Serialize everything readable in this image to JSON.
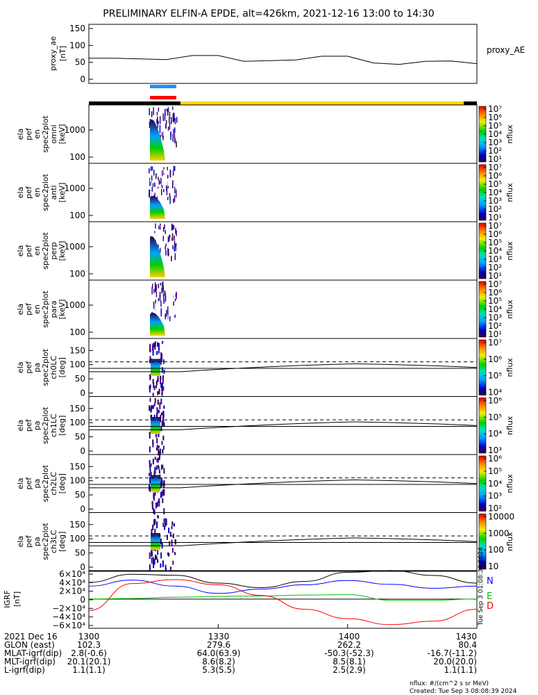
{
  "title": "PRELIMINARY ELFIN-A EPDE, alt=426km, 2021-12-16 13:00 to 14:30",
  "ae_panel": {
    "ylabel": [
      "proxy_ae",
      "[nT]"
    ],
    "legend": "proxy_AE",
    "yticks": [
      "150",
      "100",
      "50",
      "0"
    ],
    "ylim": [
      0,
      150
    ]
  },
  "spec_panels": [
    {
      "ylabel": [
        "ela",
        "pef",
        "en",
        "spec2plot",
        "omni",
        "[keV]"
      ],
      "yticks": [
        "1000",
        "100"
      ],
      "cbar_ticks": [
        "10⁷",
        "10⁶",
        "10⁵",
        "10⁴",
        "10³",
        "10²",
        "10¹"
      ],
      "cbar_label": "nflux"
    },
    {
      "ylabel": [
        "ela",
        "pef",
        "en",
        "spec2plot",
        "anti",
        "[keV]"
      ],
      "yticks": [
        "1000",
        "100"
      ],
      "cbar_ticks": [
        "10⁷",
        "10⁶",
        "10⁵",
        "10⁴",
        "10³",
        "10²",
        "10¹"
      ],
      "cbar_label": "nflux"
    },
    {
      "ylabel": [
        "ela",
        "pef",
        "en",
        "spec2plot",
        "perp",
        "[keV]"
      ],
      "yticks": [
        "1000",
        "100"
      ],
      "cbar_ticks": [
        "10⁷",
        "10⁶",
        "10⁵",
        "10⁴",
        "10³",
        "10²",
        "10¹"
      ],
      "cbar_label": "nflux"
    },
    {
      "ylabel": [
        "ela",
        "pef",
        "en",
        "spec2plot",
        "para",
        "[keV]"
      ],
      "yticks": [
        "1000",
        "100"
      ],
      "cbar_ticks": [
        "10⁷",
        "10⁶",
        "10⁵",
        "10⁴",
        "10³",
        "10²",
        "10¹"
      ],
      "cbar_label": "nflux"
    }
  ],
  "pa_panels": [
    {
      "ylabel": [
        "ela",
        "pef",
        "pa",
        "spec2plot",
        "ch0LC",
        "[deg]"
      ],
      "yticks": [
        "150",
        "100",
        "50",
        "0"
      ],
      "cbar_ticks": [
        "10⁷",
        "10⁶",
        "10⁵",
        "10⁴"
      ],
      "cbar_label": "nflux"
    },
    {
      "ylabel": [
        "ela",
        "pef",
        "pa",
        "spec2plot",
        "ch1LC",
        "[deg]"
      ],
      "yticks": [
        "150",
        "100",
        "50",
        "0"
      ],
      "cbar_ticks": [
        "10⁶",
        "10⁵",
        "10⁴",
        "10³"
      ],
      "cbar_label": "nflux"
    },
    {
      "ylabel": [
        "ela",
        "pef",
        "pa",
        "spec2plot",
        "ch2LC",
        "[deg]"
      ],
      "yticks": [
        "150",
        "100",
        "50",
        "0"
      ],
      "cbar_ticks": [
        "10⁶",
        "10⁵",
        "10⁴",
        "10³",
        "10²"
      ],
      "cbar_label": "nflux"
    },
    {
      "ylabel": [
        "ela",
        "pef",
        "pa",
        "spec2plot",
        "ch3LC",
        "[deg]"
      ],
      "yticks": [
        "150",
        "100",
        "50",
        "0"
      ],
      "cbar_ticks": [
        "10000",
        "1000",
        "100",
        "10"
      ],
      "cbar_label": "nflux"
    }
  ],
  "igrf_panel": {
    "ylabel": [
      "IGRF",
      "[nT]"
    ],
    "yticks": [
      "6×10⁴",
      "4×10⁴",
      "2×10⁴",
      "0",
      "−2×10⁴",
      "−4×10⁴",
      "−6×10⁴"
    ],
    "legend": [
      "N",
      "E",
      "D"
    ],
    "side_note": "Tue Sep 3 01:08:36 2024"
  },
  "colors": {
    "n_curve": "#0000ff",
    "e_curve": "#00c000",
    "d_curve": "#ff0000",
    "bar_blue": "#1e90ff",
    "bar_red": "#ff0000",
    "sunlit_bar": "#ffd700",
    "shadow_bar": "#000000"
  },
  "footer": {
    "rows": [
      [
        "2021 Dec 16",
        "1300",
        "1330",
        "1400",
        "1430"
      ],
      [
        "GLON (east)",
        "102.3",
        "279.6",
        "262.2",
        "80.4"
      ],
      [
        "MLAT-igrf(dip)",
        "2.8(-0.6)",
        "64.0(63.9)",
        "-50.3(-52.3)",
        "-16.7(-11.2)"
      ],
      [
        "MLT-igrf(dip)",
        "20.1(20.1)",
        "8.6(8.2)",
        "8.5(8.1)",
        "20.0(20.0)"
      ],
      [
        "L-igrf(dip)",
        "1.1(1.1)",
        "5.3(5.5)",
        "2.5(2.9)",
        "1.1(1.1)"
      ]
    ],
    "nflux_note": "nflux: #/(cm^2 s sr MeV)",
    "created": "Created: Tue Sep  3 08:08:39 2024"
  },
  "chart_data": {
    "type": "line",
    "x_range": [
      "13:00",
      "14:30"
    ],
    "proxy_ae": {
      "x_minutes": [
        0,
        6,
        12,
        18,
        24,
        30,
        36,
        42,
        48,
        54,
        60,
        66,
        72,
        78,
        84,
        90
      ],
      "values": [
        62,
        62,
        60,
        58,
        70,
        70,
        53,
        55,
        57,
        68,
        68,
        48,
        44,
        53,
        54,
        46
      ],
      "ylim": [
        0,
        150
      ]
    },
    "igrf": {
      "x_minutes": [
        0,
        10,
        20,
        30,
        40,
        50,
        60,
        70,
        80,
        90
      ],
      "N": [
        32000,
        46000,
        32000,
        15000,
        25000,
        35000,
        45000,
        36000,
        27000,
        32000
      ],
      "E": [
        2000,
        3000,
        6000,
        8000,
        9000,
        11000,
        12000,
        -1000,
        -1000,
        2000
      ],
      "D": [
        -25000,
        38000,
        47000,
        35000,
        10000,
        -22000,
        -44000,
        -58000,
        -50000,
        -22000
      ],
      "ylim": [
        -60000,
        60000
      ]
    }
  }
}
